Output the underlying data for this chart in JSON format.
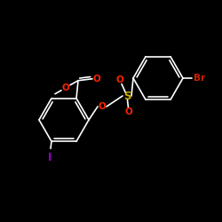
{
  "background_color": "#000000",
  "bond_color": "#ffffff",
  "atom_colors": {
    "O": "#ff2200",
    "S": "#ccaa00",
    "Br": "#cc2200",
    "I": "#9900cc",
    "C": "#ffffff"
  },
  "figsize": [
    2.5,
    2.5
  ],
  "dpi": 100,
  "lw": 1.2
}
